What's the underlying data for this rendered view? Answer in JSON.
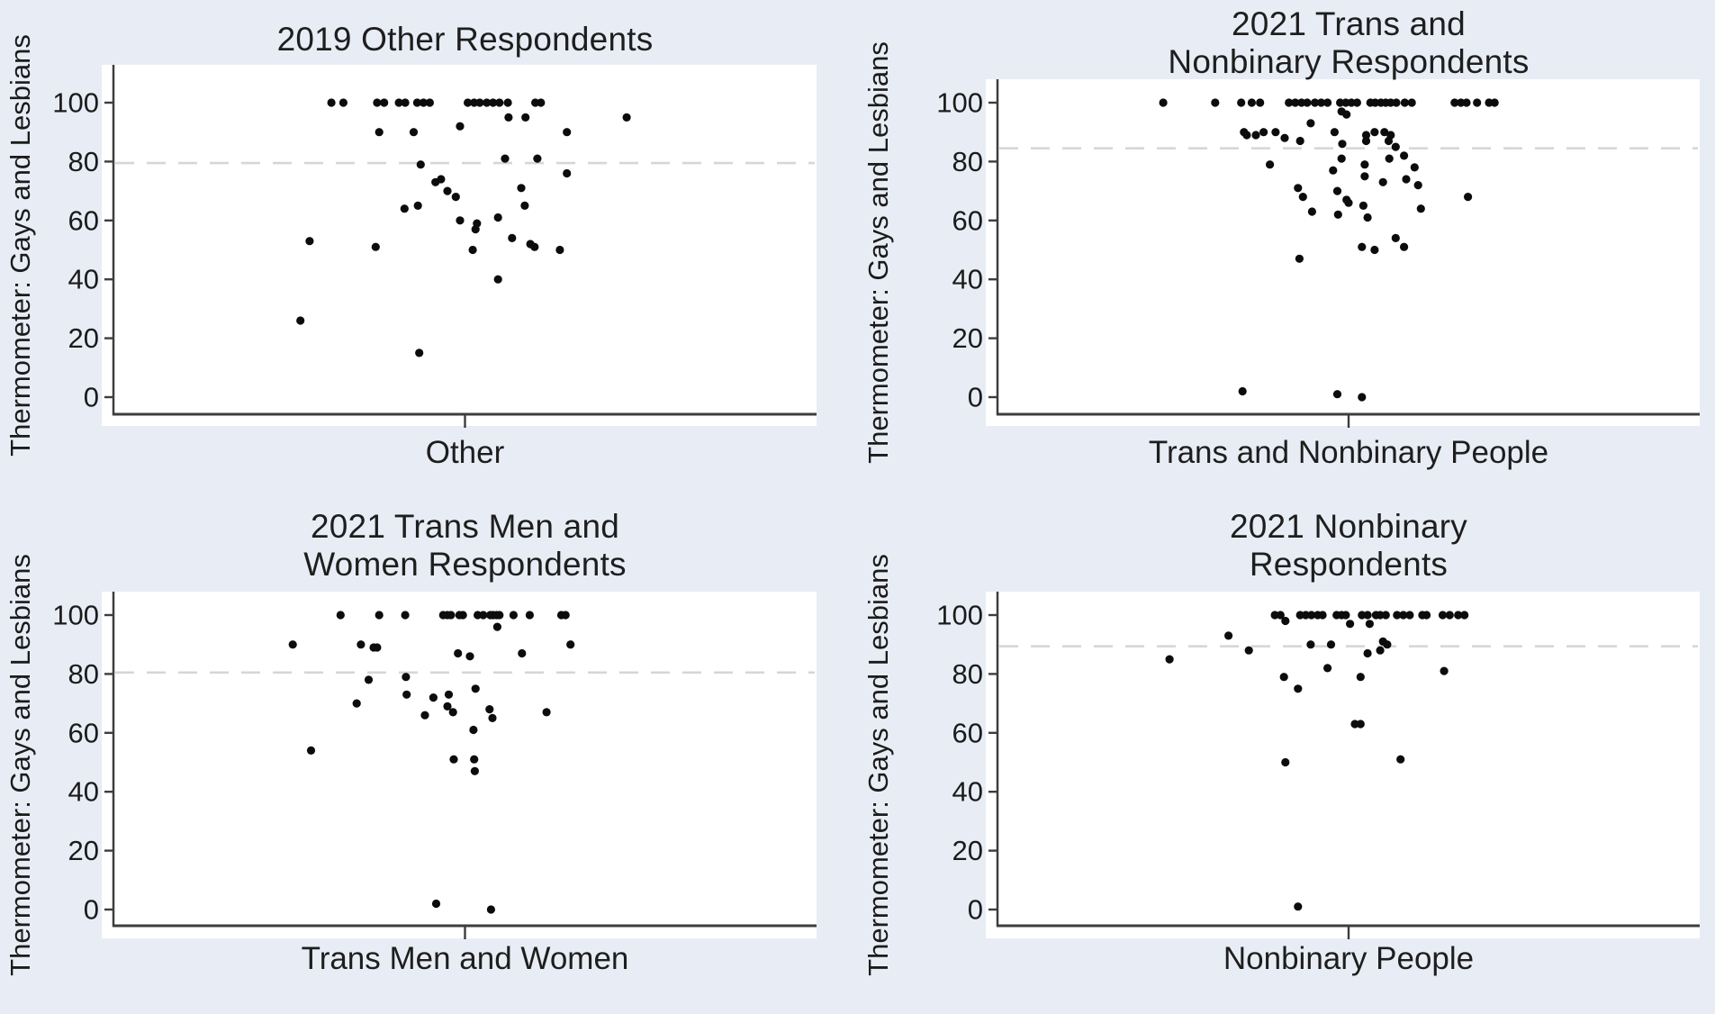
{
  "chart_data": {
    "type": "scatter",
    "layout": "2x2-panel-grid",
    "y_axis_label": "Thermometer: Gays and Lesbians",
    "ylim": [
      0,
      100
    ],
    "y_ticks": [
      0,
      20,
      40,
      60,
      80,
      100
    ],
    "grid": false,
    "legend": "none",
    "x_value_unit": "horizontal jitter as fraction of plot width (no x scale shown)",
    "colors": {
      "background": "#e8edf5",
      "plot_background": "#ffffff",
      "dot": "#0c0c0c",
      "dashed_reference_line": "#d5d7d7",
      "axis": "#3c3d3f",
      "text": "#1b1b1b"
    },
    "panels": [
      {
        "title": "2019 Other Respondents",
        "x_axis_label": "Other",
        "dashed_line_value": 79.5,
        "points": [
          [
            0.31,
            100
          ],
          [
            0.327,
            100
          ],
          [
            0.375,
            100
          ],
          [
            0.385,
            100
          ],
          [
            0.406,
            100
          ],
          [
            0.415,
            100
          ],
          [
            0.432,
            100
          ],
          [
            0.441,
            100
          ],
          [
            0.45,
            100
          ],
          [
            0.504,
            100
          ],
          [
            0.513,
            100
          ],
          [
            0.521,
            100
          ],
          [
            0.531,
            100
          ],
          [
            0.54,
            100
          ],
          [
            0.549,
            100
          ],
          [
            0.561,
            100
          ],
          [
            0.6,
            100
          ],
          [
            0.608,
            100
          ],
          [
            0.562,
            95
          ],
          [
            0.586,
            95
          ],
          [
            0.73,
            95
          ],
          [
            0.493,
            92
          ],
          [
            0.378,
            90
          ],
          [
            0.427,
            90
          ],
          [
            0.645,
            90
          ],
          [
            0.557,
            81
          ],
          [
            0.603,
            81
          ],
          [
            0.437,
            79
          ],
          [
            0.645,
            76
          ],
          [
            0.466,
            74
          ],
          [
            0.458,
            73
          ],
          [
            0.58,
            71
          ],
          [
            0.475,
            70
          ],
          [
            0.487,
            68
          ],
          [
            0.433,
            65
          ],
          [
            0.585,
            65
          ],
          [
            0.414,
            64
          ],
          [
            0.547,
            61
          ],
          [
            0.493,
            60
          ],
          [
            0.517,
            59
          ],
          [
            0.515,
            57
          ],
          [
            0.567,
            54
          ],
          [
            0.279,
            53
          ],
          [
            0.593,
            52
          ],
          [
            0.373,
            51
          ],
          [
            0.599,
            51
          ],
          [
            0.511,
            50
          ],
          [
            0.635,
            50
          ],
          [
            0.547,
            40
          ],
          [
            0.266,
            26
          ],
          [
            0.435,
            15
          ]
        ]
      },
      {
        "title": "2021 Trans and\nNonbinary Respondents",
        "x_axis_label": "Trans and Nonbinary People",
        "dashed_line_value": 84.5,
        "points": [
          [
            0.236,
            100
          ],
          [
            0.31,
            100
          ],
          [
            0.347,
            100
          ],
          [
            0.362,
            100
          ],
          [
            0.374,
            100
          ],
          [
            0.415,
            100
          ],
          [
            0.424,
            100
          ],
          [
            0.433,
            100
          ],
          [
            0.441,
            100
          ],
          [
            0.452,
            100
          ],
          [
            0.461,
            100
          ],
          [
            0.47,
            100
          ],
          [
            0.488,
            100
          ],
          [
            0.496,
            100
          ],
          [
            0.504,
            100
          ],
          [
            0.512,
            100
          ],
          [
            0.531,
            100
          ],
          [
            0.538,
            100
          ],
          [
            0.546,
            100
          ],
          [
            0.553,
            100
          ],
          [
            0.56,
            100
          ],
          [
            0.568,
            100
          ],
          [
            0.58,
            100
          ],
          [
            0.59,
            100
          ],
          [
            0.651,
            100
          ],
          [
            0.66,
            100
          ],
          [
            0.668,
            100
          ],
          [
            0.683,
            100
          ],
          [
            0.7,
            100
          ],
          [
            0.708,
            100
          ],
          [
            0.49,
            97
          ],
          [
            0.497,
            96
          ],
          [
            0.446,
            93
          ],
          [
            0.351,
            90
          ],
          [
            0.379,
            90
          ],
          [
            0.396,
            90
          ],
          [
            0.48,
            90
          ],
          [
            0.537,
            90
          ],
          [
            0.551,
            90
          ],
          [
            0.355,
            89
          ],
          [
            0.368,
            89
          ],
          [
            0.525,
            89
          ],
          [
            0.56,
            89
          ],
          [
            0.409,
            88
          ],
          [
            0.431,
            87
          ],
          [
            0.525,
            87
          ],
          [
            0.557,
            87
          ],
          [
            0.491,
            86
          ],
          [
            0.567,
            85
          ],
          [
            0.579,
            82
          ],
          [
            0.49,
            81
          ],
          [
            0.558,
            81
          ],
          [
            0.388,
            79
          ],
          [
            0.523,
            79
          ],
          [
            0.594,
            78
          ],
          [
            0.478,
            77
          ],
          [
            0.523,
            75
          ],
          [
            0.582,
            74
          ],
          [
            0.549,
            73
          ],
          [
            0.599,
            72
          ],
          [
            0.428,
            71
          ],
          [
            0.484,
            70
          ],
          [
            0.435,
            68
          ],
          [
            0.67,
            68
          ],
          [
            0.497,
            67
          ],
          [
            0.5,
            66
          ],
          [
            0.521,
            65
          ],
          [
            0.603,
            64
          ],
          [
            0.448,
            63
          ],
          [
            0.485,
            62
          ],
          [
            0.527,
            61
          ],
          [
            0.567,
            54
          ],
          [
            0.519,
            51
          ],
          [
            0.579,
            51
          ],
          [
            0.537,
            50
          ],
          [
            0.43,
            47
          ],
          [
            0.349,
            2
          ],
          [
            0.484,
            1
          ],
          [
            0.519,
            0
          ]
        ]
      },
      {
        "title": "2021 Trans Men and\nWomen Respondents",
        "x_axis_label": "Trans Men and Women",
        "dashed_line_value": 80.5,
        "points": [
          [
            0.323,
            100
          ],
          [
            0.378,
            100
          ],
          [
            0.415,
            100
          ],
          [
            0.469,
            100
          ],
          [
            0.475,
            100
          ],
          [
            0.48,
            100
          ],
          [
            0.492,
            100
          ],
          [
            0.497,
            100
          ],
          [
            0.518,
            100
          ],
          [
            0.526,
            100
          ],
          [
            0.536,
            100
          ],
          [
            0.54,
            100
          ],
          [
            0.545,
            100
          ],
          [
            0.549,
            100
          ],
          [
            0.569,
            100
          ],
          [
            0.592,
            100
          ],
          [
            0.637,
            100
          ],
          [
            0.643,
            100
          ],
          [
            0.546,
            96
          ],
          [
            0.255,
            90
          ],
          [
            0.352,
            90
          ],
          [
            0.65,
            90
          ],
          [
            0.37,
            89
          ],
          [
            0.375,
            89
          ],
          [
            0.49,
            87
          ],
          [
            0.581,
            87
          ],
          [
            0.507,
            86
          ],
          [
            0.416,
            79
          ],
          [
            0.363,
            78
          ],
          [
            0.515,
            75
          ],
          [
            0.417,
            73
          ],
          [
            0.477,
            73
          ],
          [
            0.455,
            72
          ],
          [
            0.346,
            70
          ],
          [
            0.475,
            69
          ],
          [
            0.535,
            68
          ],
          [
            0.483,
            67
          ],
          [
            0.616,
            67
          ],
          [
            0.443,
            66
          ],
          [
            0.539,
            65
          ],
          [
            0.512,
            61
          ],
          [
            0.281,
            54
          ],
          [
            0.484,
            51
          ],
          [
            0.513,
            51
          ],
          [
            0.514,
            47
          ],
          [
            0.459,
            2
          ],
          [
            0.537,
            0
          ]
        ]
      },
      {
        "title": "2021 Nonbinary\nRespondents",
        "x_axis_label": "Nonbinary People",
        "dashed_line_value": 89.4,
        "points": [
          [
            0.395,
            100
          ],
          [
            0.403,
            100
          ],
          [
            0.431,
            100
          ],
          [
            0.439,
            100
          ],
          [
            0.447,
            100
          ],
          [
            0.456,
            100
          ],
          [
            0.463,
            100
          ],
          [
            0.483,
            100
          ],
          [
            0.49,
            100
          ],
          [
            0.496,
            100
          ],
          [
            0.519,
            100
          ],
          [
            0.527,
            100
          ],
          [
            0.539,
            100
          ],
          [
            0.545,
            100
          ],
          [
            0.553,
            100
          ],
          [
            0.569,
            100
          ],
          [
            0.578,
            100
          ],
          [
            0.587,
            100
          ],
          [
            0.605,
            100
          ],
          [
            0.611,
            100
          ],
          [
            0.634,
            100
          ],
          [
            0.644,
            100
          ],
          [
            0.656,
            100
          ],
          [
            0.665,
            100
          ],
          [
            0.41,
            98
          ],
          [
            0.502,
            97
          ],
          [
            0.53,
            97
          ],
          [
            0.329,
            93
          ],
          [
            0.549,
            91
          ],
          [
            0.446,
            90
          ],
          [
            0.475,
            90
          ],
          [
            0.555,
            90
          ],
          [
            0.358,
            88
          ],
          [
            0.545,
            88
          ],
          [
            0.527,
            87
          ],
          [
            0.245,
            85
          ],
          [
            0.47,
            82
          ],
          [
            0.636,
            81
          ],
          [
            0.408,
            79
          ],
          [
            0.517,
            79
          ],
          [
            0.428,
            75
          ],
          [
            0.509,
            63
          ],
          [
            0.517,
            63
          ],
          [
            0.574,
            51
          ],
          [
            0.41,
            50
          ],
          [
            0.428,
            1
          ]
        ]
      }
    ]
  }
}
